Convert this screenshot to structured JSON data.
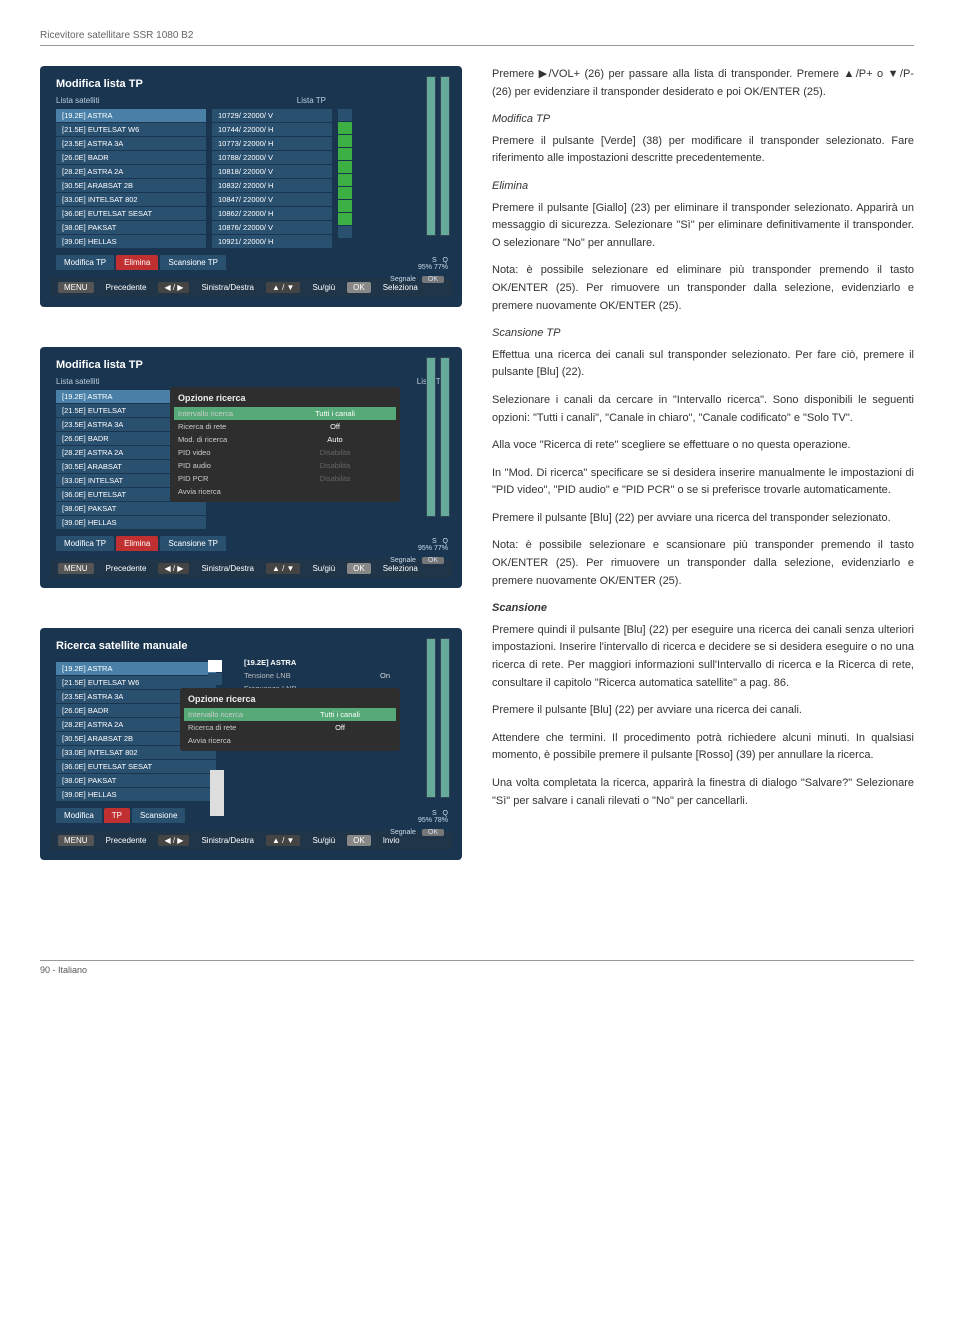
{
  "header": {
    "product": "Ricevitore satellitare SSR 1080 B2"
  },
  "screen1": {
    "title": "Modifica lista TP",
    "col_sat": "Lista satelliti",
    "col_tp": "Lista TP",
    "sats": [
      "[19.2E] ASTRA",
      "[21.5E] EUTELSAT W6",
      "[23.5E] ASTRA 3A",
      "[26.0E] BADR",
      "[28.2E] ASTRA 2A",
      "[30.5E] ARABSAT 2B",
      "[33.0E] INTELSAT 802",
      "[36.0E] EUTELSAT SESAT",
      "[38.0E] PAKSAT",
      "[39.0E] HELLAS"
    ],
    "tps": [
      "10729/ 22000/ V",
      "10744/ 22000/ H",
      "10773/ 22000/ H",
      "10788/ 22000/ V",
      "10818/ 22000/ V",
      "10832/ 22000/ H",
      "10847/ 22000/ V",
      "10862/ 22000/ H",
      "10876/ 22000/ V",
      "10921/ 22000/ H"
    ],
    "checks": [
      false,
      true,
      true,
      true,
      true,
      true,
      true,
      true,
      true,
      false
    ],
    "tabs": [
      "Modifica TP",
      "Elimina",
      "Scansione TP"
    ],
    "sq": {
      "s_label": "S",
      "q_label": "Q",
      "s": "95%",
      "q": "77%"
    },
    "signal_label": "Segnale",
    "ok_label": "OK",
    "footer": {
      "menu": "MENU",
      "prev": "Precedente",
      "lr": "Sinistra/Destra",
      "ud": "Su/giù",
      "ok": "OK",
      "sel": "Seleziona"
    }
  },
  "screen2": {
    "title": "Modifica lista TP",
    "col_sat": "Lista satelliti",
    "col_tp": "Lista TP",
    "sats": [
      "[19.2E] ASTRA",
      "[21.5E] EUTELSAT",
      "[23.5E] ASTRA 3A",
      "[26.0E] BADR",
      "[28.2E] ASTRA 2A",
      "[30.5E] ARABSAT",
      "[33.0E] INTELSAT",
      "[36.0E] EUTELSAT",
      "[38.0E] PAKSAT",
      "[39.0E] HELLAS"
    ],
    "popup_title": "Opzione ricerca",
    "popup_rows": [
      {
        "k": "Intervallo ricerca",
        "v": "Tutti i canali",
        "sel": true
      },
      {
        "k": "Ricerca di rete",
        "v": "Off"
      },
      {
        "k": "Mod. di ricerca",
        "v": "Auto"
      },
      {
        "k": "PID video",
        "v": "Disabilita",
        "dim": true
      },
      {
        "k": "PID audio",
        "v": "Disabilita",
        "dim": true
      },
      {
        "k": "PID PCR",
        "v": "Disabilita",
        "dim": true
      },
      {
        "k": "Avvia ricerca",
        "v": ""
      }
    ],
    "tabs": [
      "Modifica TP",
      "Elimina",
      "Scansione TP"
    ],
    "sq": {
      "s_label": "S",
      "q_label": "Q",
      "s": "95%",
      "q": "77%"
    },
    "signal_label": "Segnale",
    "ok_label": "OK",
    "footer": {
      "menu": "MENU",
      "prev": "Precedente",
      "lr": "Sinistra/Destra",
      "ud": "Su/giù",
      "ok": "OK",
      "sel": "Seleziona"
    }
  },
  "screen3": {
    "title": "Ricerca satellite manuale",
    "sats": [
      "[19.2E] ASTRA",
      "[21.5E] EUTELSAT W6",
      "[23.5E] ASTRA 3A",
      "[26.0E] BADR",
      "[28.2E] ASTRA 2A",
      "[30.5E] ARABSAT 2B",
      "[33.0E] INTELSAT 802",
      "[36.0E] EUTELSAT SESAT",
      "[38.0E] PAKSAT",
      "[39.0E] HELLAS"
    ],
    "topbox_title": "[19.2E] ASTRA",
    "topbox_rows": [
      {
        "k": "Tensione LNB",
        "v": "On"
      },
      {
        "k": "Frequenza LNB",
        "v": ""
      }
    ],
    "popup_title": "Opzione ricerca",
    "popup_rows": [
      {
        "k": "Intervallo ricerca",
        "v": "Tutti i canali",
        "sel": true
      },
      {
        "k": "Ricerca di rete",
        "v": "Off"
      },
      {
        "k": "Avvia ricerca",
        "v": ""
      }
    ],
    "tabs": [
      "Modifica",
      "TP",
      "Scansione"
    ],
    "sq": {
      "s_label": "S",
      "q_label": "Q",
      "s": "95%",
      "q": "78%"
    },
    "signal_label": "Segnale",
    "ok_label": "OK",
    "footer": {
      "menu": "MENU",
      "prev": "Precedente",
      "lr": "Sinistra/Destra",
      "ud": "Su/giù",
      "ok": "OK",
      "sel": "Invio"
    }
  },
  "right": {
    "p1": "Premere ▶/VOL+ (26) per passare alla lista di transponder. Premere ▲/P+ o ▼/P- (26) per evidenziare il transponder desiderato e poi OK/ENTER (25).",
    "h_modifica": "Modifica TP",
    "p2": "Premere il pulsante [Verde] (38) per modificare il transponder selezionato. Fare riferimento alle impostazioni descritte precedentemente.",
    "h_elimina": "Elimina",
    "p3": "Premere il pulsante [Giallo] (23) per eliminare il transponder selezionato. Apparirà un messaggio di sicurezza. Selezionare \"Sì\" per eliminare definitivamente il transponder. O selezionare \"No\" per annullare.",
    "p4": "Nota: è possibile selezionare ed eliminare più transponder premendo il tasto OK/ENTER (25). Per rimuovere un transponder dalla selezione, evidenziarlo e premere nuovamente OK/ENTER (25).",
    "h_scan_tp": "Scansione TP",
    "p5": "Effettua una ricerca dei canali sul transponder selezionato. Per fare ciò, premere il pulsante [Blu] (22).",
    "p6": "Selezionare i canali da cercare in \"Intervallo ricerca\". Sono disponibili le seguenti opzioni: \"Tutti i canali\", \"Canale in chiaro\", \"Canale codificato\" e \"Solo TV\".",
    "p7": "Alla voce \"Ricerca di rete\" scegliere se effettuare o no questa operazione.",
    "p8": "In \"Mod. Di ricerca\" specificare se si desidera inserire manualmente le impostazioni di \"PID video\", \"PID audio\" e \"PID PCR\" o se si preferisce trovarle automaticamente.",
    "p9": "Premere il pulsante [Blu] (22) per avviare una ricerca del transponder selezionato.",
    "p10": "Nota: è possibile selezionare e scansionare più transponder premendo il tasto OK/ENTER (25). Per rimuovere un transponder dalla selezione, evidenziarlo e premere nuovamente OK/ENTER (25).",
    "h_scansione": "Scansione",
    "p11": "Premere quindi il pulsante [Blu] (22) per eseguire una ricerca dei canali senza ulteriori impostazioni. Inserire l'intervallo di ricerca e decidere se si desidera eseguire o no una ricerca di rete. Per maggiori informazioni sull'Intervallo di ricerca e la Ricerca di rete, consultare il capitolo \"Ricerca automatica satellite\" a pag. 86.",
    "p12": "Premere il pulsante [Blu] (22) per avviare una ricerca dei canali.",
    "p13": "Attendere che termini. Il procedimento potrà richiedere alcuni minuti. In qualsiasi momento, è possibile premere il pulsante [Rosso] (39) per annullare la ricerca.",
    "p14": "Una volta completata la ricerca, apparirà la finestra di dialogo \"Salvare?\"  Selezionare \"Sì\" per salvare i canali rilevati o \"No\" per cancellarli."
  },
  "footer": {
    "page": "90 - Italiano"
  }
}
